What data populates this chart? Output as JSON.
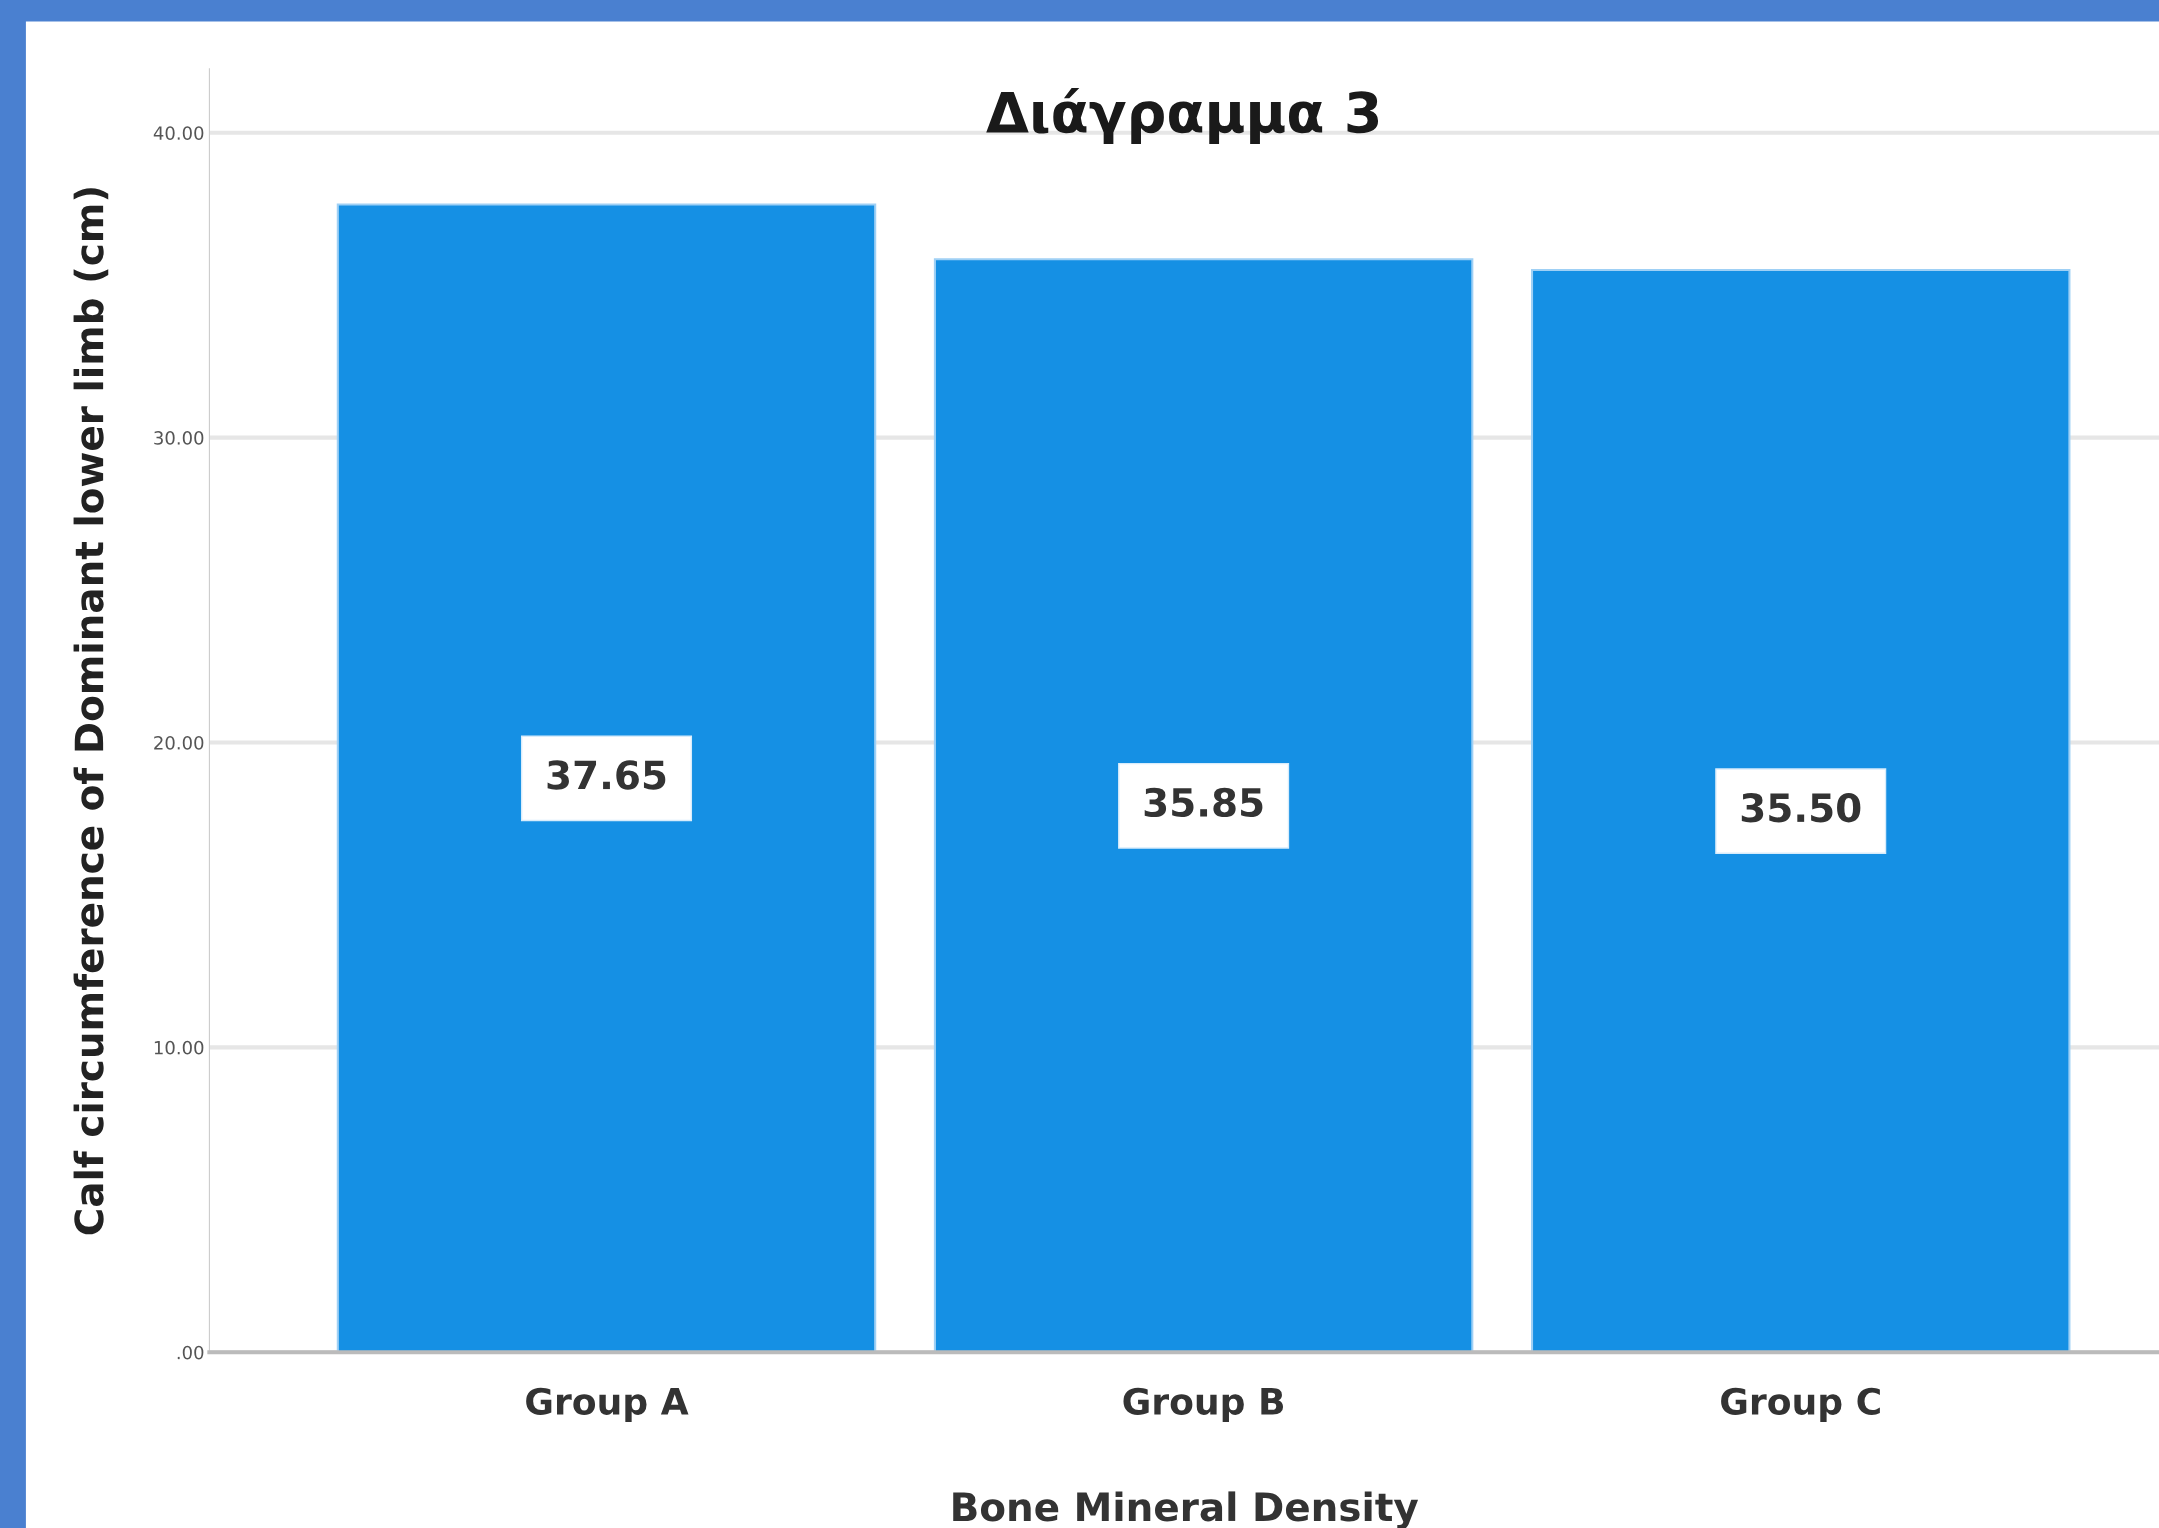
{
  "chart_data": {
    "type": "bar",
    "title": "Διάγραμμα 3",
    "xlabel": "Bone Mineral Density",
    "ylabel": "Calf circumference of Dominant lower limb (cm)",
    "categories": [
      "Group A",
      "Group B",
      "Group C"
    ],
    "values": [
      37.65,
      35.85,
      35.5
    ],
    "value_labels": [
      "37.65",
      "35.85",
      "35.50"
    ],
    "color": "#1590e4",
    "ylim": [
      0,
      42.1
    ],
    "yticks": [
      {
        "value": 0,
        "label": ".00"
      },
      {
        "value": 10,
        "label": "10.00"
      },
      {
        "value": 20,
        "label": "20.00"
      },
      {
        "value": 30,
        "label": "30.00"
      },
      {
        "value": 40,
        "label": "40.00"
      }
    ],
    "grid": "y"
  }
}
